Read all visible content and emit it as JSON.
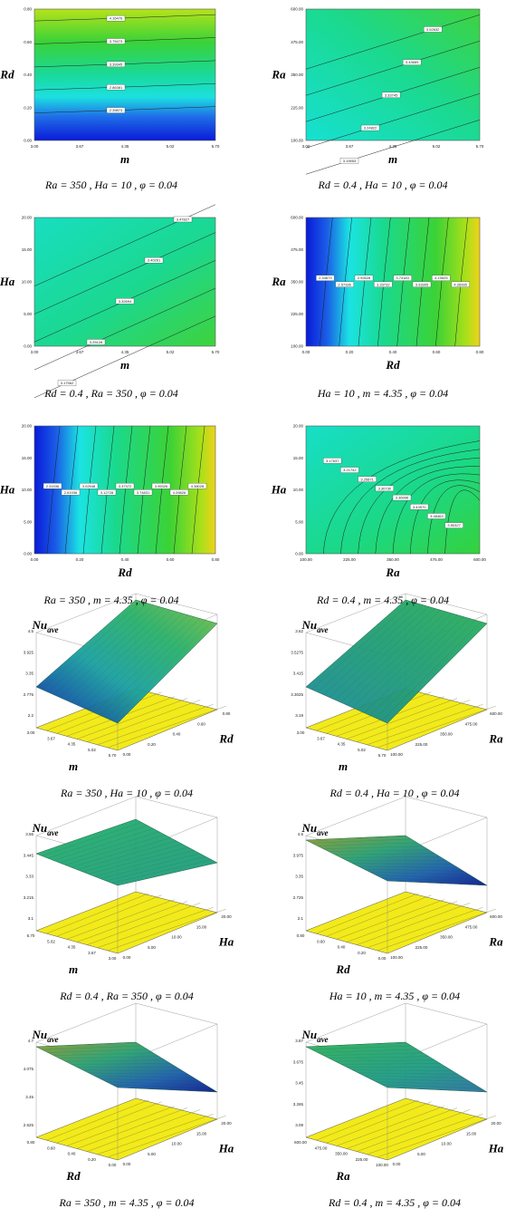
{
  "chart_data": [
    {
      "type": "contour",
      "id": "c1",
      "xlabel": "m",
      "ylabel": "Rd",
      "xticks": [
        "3.00",
        "3.67",
        "4.35",
        "5.02",
        "5.70"
      ],
      "yticks": [
        "0.00",
        "0.20",
        "0.40",
        "0.60",
        "0.80"
      ],
      "contour_labels": [
        "2.39873",
        "2.86381",
        "3.39345",
        "3.75473",
        "4.16476"
      ],
      "caption": "Ra = 350 , Ha = 10 , φ = 0.04"
    },
    {
      "type": "contour",
      "id": "c2",
      "xlabel": "m",
      "ylabel": "Ra",
      "xticks": [
        "3.00",
        "3.67",
        "4.35",
        "5.02",
        "5.70"
      ],
      "yticks": [
        "100.00",
        "225.00",
        "350.00",
        "475.00",
        "600.00"
      ],
      "contour_labels": [
        "3.19553",
        "3.24822",
        "3.33745",
        "3.43669",
        "3.52632"
      ],
      "caption": "Rd = 0.4 , Ha = 10 , φ = 0.04"
    },
    {
      "type": "contour",
      "id": "c3",
      "xlabel": "m",
      "ylabel": "Ha",
      "xticks": [
        "3.00",
        "3.67",
        "4.35",
        "5.02",
        "5.70"
      ],
      "yticks": [
        "0.00",
        "5.00",
        "10.00",
        "15.00",
        "20.00"
      ],
      "contour_labels": [
        "3.17562",
        "3.25128",
        "3.32694",
        "3.40261",
        "3.47827"
      ],
      "caption": "Rd = 0.4 , Ra = 350 , φ = 0.04"
    },
    {
      "type": "contour",
      "id": "c4",
      "xlabel": "Rd",
      "ylabel": "Ra",
      "xticks": [
        "0.00",
        "0.20",
        "0.40",
        "0.60",
        "0.80"
      ],
      "yticks": [
        "100.00",
        "225.00",
        "350.00",
        "475.00",
        "600.00"
      ],
      "contour_labels": [
        "2.34873",
        "2.57336",
        "2.92628",
        "3.33732",
        "3.74183",
        "3.93305",
        "4.19525",
        "4.26935"
      ],
      "caption": "Ha = 10 , m = 4.35 , φ = 0.04"
    },
    {
      "type": "contour",
      "id": "c5",
      "xlabel": "Rd",
      "ylabel": "Ha",
      "xticks": [
        "0.00",
        "0.20",
        "0.40",
        "0.60",
        "0.80"
      ],
      "yticks": [
        "0.00",
        "5.00",
        "10.00",
        "15.00",
        "20.00"
      ],
      "contour_labels": [
        "2.31536",
        "2.61936",
        "3.02548",
        "3.12728",
        "3.37372",
        "3.74831",
        "3.95326",
        "4.09826",
        "4.38028"
      ],
      "caption": "Ra = 350 , m = 4.35 , φ = 0.04"
    },
    {
      "type": "contour",
      "id": "c6",
      "xlabel": "Ra",
      "ylabel": "Ha",
      "xticks": [
        "100.00",
        "225.00",
        "350.00",
        "475.00",
        "600.00"
      ],
      "yticks": [
        "0.00",
        "5.00",
        "10.00",
        "15.00",
        "20.00"
      ],
      "contour_labels": [
        "3.17637",
        "3.21742",
        "3.25871",
        "3.30730",
        "3.36996",
        "3.43570",
        "3.48463",
        "3.50327"
      ],
      "caption": "Rd = 0.4 , m = 4.35 , φ = 0.04"
    },
    {
      "type": "surface",
      "id": "s1",
      "zlabel": "Nu",
      "zlabel_sub": "ave",
      "xlabel": "m",
      "ylabel": "Rd",
      "zticks": [
        "2.2",
        "2.775",
        "3.35",
        "3.925",
        "4.5"
      ],
      "xticks": [
        "3.00",
        "3.67",
        "4.35",
        "5.02",
        "5.70"
      ],
      "yticks": [
        "0.00",
        "0.20",
        "0.40",
        "0.60",
        "0.80"
      ],
      "caption": "Ra = 350 , Ha = 10 , φ = 0.04"
    },
    {
      "type": "surface",
      "id": "s2",
      "zlabel": "Nu",
      "zlabel_sub": "ave",
      "xlabel": "m",
      "ylabel": "Ra",
      "zticks": [
        "3.19",
        "3.3025",
        "3.415",
        "3.5275",
        "3.62"
      ],
      "xticks": [
        "3.00",
        "3.67",
        "4.35",
        "5.02",
        "5.70"
      ],
      "yticks": [
        "100.00",
        "225.00",
        "350.00",
        "475.00",
        "600.00"
      ],
      "caption": "Rd = 0.4 , Ha = 10 , φ = 0.04"
    },
    {
      "type": "surface",
      "id": "s3",
      "zlabel": "Nu",
      "zlabel_sub": "ave",
      "xlabel": "m",
      "ylabel": "Ha",
      "zticks": [
        "3.1",
        "3.215",
        "3.33",
        "3.445",
        "3.56"
      ],
      "xticks": [
        "5.70",
        "5.02",
        "4.35",
        "3.67",
        "3.00"
      ],
      "yticks": [
        "0.00",
        "5.00",
        "10.00",
        "15.00",
        "20.00"
      ],
      "caption": "Rd = 0.4 , Ra = 350 , φ = 0.04"
    },
    {
      "type": "surface",
      "id": "s4",
      "zlabel": "Nu",
      "zlabel_sub": "ave",
      "xlabel": "Rd",
      "ylabel": "Ra",
      "zticks": [
        "2.1",
        "2.725",
        "3.35",
        "3.975",
        "4.6"
      ],
      "xticks": [
        "0.80",
        "0.60",
        "0.40",
        "0.20",
        "0.00"
      ],
      "yticks": [
        "100.00",
        "225.00",
        "350.00",
        "475.00",
        "600.00"
      ],
      "caption": "Ha = 10 , m = 4.35 , φ = 0.04"
    },
    {
      "type": "surface",
      "id": "s5",
      "zlabel": "Nu",
      "zlabel_sub": "ave",
      "xlabel": "Rd",
      "ylabel": "Ha",
      "zticks": [
        "2.625",
        "3.45",
        "4.075",
        "4.7"
      ],
      "xticks": [
        "0.80",
        "0.60",
        "0.40",
        "0.20",
        "0.00"
      ],
      "yticks": [
        "0.00",
        "5.00",
        "10.00",
        "15.00",
        "20.00"
      ],
      "caption": "Ra = 350 , m = 4.35 , φ = 0.04"
    },
    {
      "type": "surface",
      "id": "s6",
      "zlabel": "Nu",
      "zlabel_sub": "ave",
      "xlabel": "Ra",
      "ylabel": "Ha",
      "zticks": [
        "3.09",
        "3.265",
        "3.45",
        "3.675",
        "3.87"
      ],
      "xticks": [
        "600.00",
        "475.00",
        "350.00",
        "225.00",
        "100.00"
      ],
      "yticks": [
        "0.00",
        "5.00",
        "10.00",
        "15.00",
        "20.00"
      ],
      "caption": "Rd = 0.4 , m = 4.35 , φ = 0.04"
    }
  ]
}
